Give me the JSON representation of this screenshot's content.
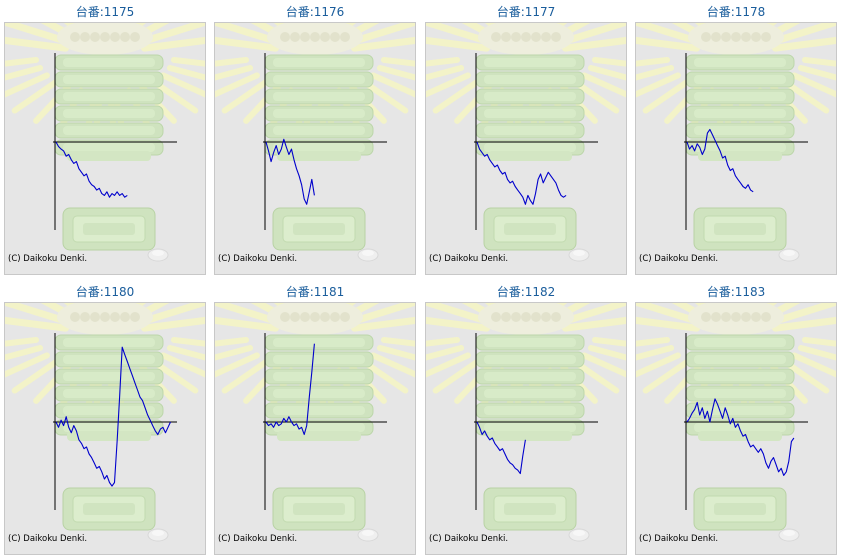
{
  "copyright": "(C) Daikoku Denki.",
  "colors": {
    "title": "#1a5d9c",
    "series": "#0000cc",
    "axis": "#000000",
    "panel": "#e6e6e6"
  },
  "chart_data": [
    {
      "type": "line",
      "title": "台番:1175",
      "xlim": [
        0,
        100
      ],
      "ylim": [
        -100,
        100
      ],
      "series": [
        {
          "values": [
            0,
            -5,
            -8,
            -10,
            -16,
            -14,
            -20,
            -24,
            -22,
            -30,
            -34,
            -38,
            -36,
            -44,
            -48,
            -50,
            -54,
            -52,
            -58,
            -60,
            -56,
            -62,
            -58,
            -60,
            -56,
            -60,
            -58,
            -62,
            -60
          ]
        }
      ]
    },
    {
      "type": "line",
      "title": "台番:1176",
      "xlim": [
        0,
        100
      ],
      "ylim": [
        -100,
        100
      ],
      "series": [
        {
          "values": [
            0,
            -10,
            -22,
            -12,
            -4,
            -14,
            -8,
            3,
            -6,
            -14,
            -8,
            -20,
            -30,
            -38,
            -48,
            -64,
            -70,
            -56,
            -42,
            -60
          ]
        }
      ]
    },
    {
      "type": "line",
      "title": "台番:1177",
      "xlim": [
        0,
        100
      ],
      "ylim": [
        -100,
        100
      ],
      "series": [
        {
          "values": [
            0,
            -8,
            -12,
            -16,
            -14,
            -20,
            -24,
            -28,
            -26,
            -32,
            -36,
            -34,
            -42,
            -46,
            -44,
            -50,
            -54,
            -58,
            -62,
            -70,
            -60,
            -66,
            -70,
            -58,
            -42,
            -36,
            -46,
            -40,
            -34,
            -38,
            -42,
            -46,
            -54,
            -60,
            -62,
            -60
          ]
        }
      ]
    },
    {
      "type": "line",
      "title": "台番:1178",
      "xlim": [
        0,
        100
      ],
      "ylim": [
        -100,
        100
      ],
      "series": [
        {
          "values": [
            0,
            -8,
            -4,
            -10,
            -2,
            -6,
            -14,
            -8,
            10,
            14,
            8,
            2,
            -4,
            -10,
            -18,
            -16,
            -26,
            -32,
            -30,
            -38,
            -42,
            -46,
            -50,
            -52,
            -48,
            -54,
            -56
          ]
        }
      ]
    },
    {
      "type": "line",
      "title": "台番:1180",
      "xlim": [
        0,
        100
      ],
      "ylim": [
        -100,
        100
      ],
      "series": [
        {
          "values": [
            0,
            -6,
            2,
            -4,
            6,
            -6,
            -12,
            -4,
            -10,
            -20,
            -24,
            -30,
            -28,
            -36,
            -40,
            -46,
            -52,
            -50,
            -56,
            -64,
            -60,
            -68,
            -72,
            -68,
            -22,
            28,
            84,
            76,
            68,
            60,
            52,
            44,
            36,
            28,
            24,
            16,
            8,
            2,
            -4,
            -10,
            -14,
            -8,
            -6,
            -12,
            -6,
            0
          ]
        }
      ]
    },
    {
      "type": "line",
      "title": "台番:1181",
      "xlim": [
        0,
        100
      ],
      "ylim": [
        -100,
        100
      ],
      "series": [
        {
          "values": [
            0,
            -4,
            -2,
            -6,
            0,
            -4,
            -2,
            4,
            0,
            6,
            0,
            -4,
            -2,
            -8,
            -6,
            -14,
            -4,
            28,
            56,
            88
          ]
        }
      ]
    },
    {
      "type": "line",
      "title": "台番:1182",
      "xlim": [
        0,
        100
      ],
      "ylim": [
        -100,
        100
      ],
      "series": [
        {
          "values": [
            0,
            -6,
            -14,
            -10,
            -16,
            -20,
            -18,
            -24,
            -28,
            -32,
            -30,
            -36,
            -42,
            -46,
            -48,
            -52,
            -54,
            -58,
            -38,
            -20
          ]
        }
      ]
    },
    {
      "type": "line",
      "title": "台番:1183",
      "xlim": [
        0,
        100
      ],
      "ylim": [
        -100,
        100
      ],
      "series": [
        {
          "values": [
            0,
            4,
            10,
            14,
            22,
            8,
            16,
            4,
            12,
            0,
            14,
            26,
            20,
            12,
            4,
            16,
            8,
            -2,
            4,
            -6,
            -2,
            -10,
            -16,
            -14,
            -22,
            -28,
            -26,
            -30,
            -34,
            -30,
            -36,
            -46,
            -52,
            -44,
            -40,
            -48,
            -56,
            -52,
            -60,
            -56,
            -44,
            -22,
            -18
          ]
        }
      ]
    }
  ]
}
